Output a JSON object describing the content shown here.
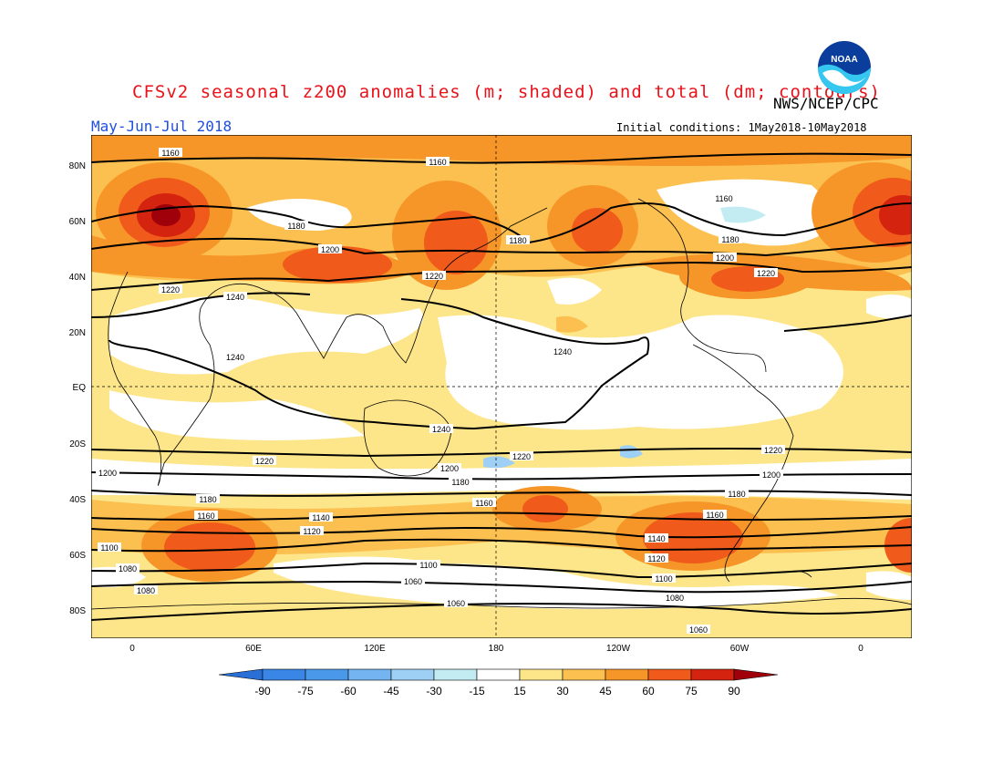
{
  "header": {
    "title": "CFSv2 seasonal z200 anomalies (m; shaded) and total (dm; contours)",
    "agency": "NWS/NCEP/CPC",
    "season": "May-Jun-Jul 2018",
    "initial_conditions": "Initial conditions: 1May2018-10May2018",
    "logo_text": "NOAA"
  },
  "map": {
    "lat_labels": [
      "80N",
      "60N",
      "40N",
      "20N",
      "EQ",
      "20S",
      "40S",
      "60S",
      "80S"
    ],
    "lon_labels": [
      "0",
      "60E",
      "120E",
      "180",
      "120W",
      "60W",
      "0"
    ],
    "contour_labels": [
      {
        "text": "1160"
      },
      {
        "text": "1160"
      },
      {
        "text": "1160"
      },
      {
        "text": "1180"
      },
      {
        "text": "1180"
      },
      {
        "text": "1180"
      },
      {
        "text": "1200"
      },
      {
        "text": "1200"
      },
      {
        "text": "1220"
      },
      {
        "text": "1220"
      },
      {
        "text": "1220"
      },
      {
        "text": "1240"
      },
      {
        "text": "1240"
      },
      {
        "text": "1240"
      },
      {
        "text": "1240"
      },
      {
        "text": "1220"
      },
      {
        "text": "1220"
      },
      {
        "text": "1220"
      },
      {
        "text": "1200"
      },
      {
        "text": "1200"
      },
      {
        "text": "1200"
      },
      {
        "text": "1180"
      },
      {
        "text": "1180"
      },
      {
        "text": "1180"
      },
      {
        "text": "1160"
      },
      {
        "text": "1160"
      },
      {
        "text": "1160"
      },
      {
        "text": "1140"
      },
      {
        "text": "1140"
      },
      {
        "text": "1120"
      },
      {
        "text": "1120"
      },
      {
        "text": "1100"
      },
      {
        "text": "1100"
      },
      {
        "text": "1100"
      },
      {
        "text": "1080"
      },
      {
        "text": "1080"
      },
      {
        "text": "1060"
      },
      {
        "text": "1060"
      },
      {
        "text": "1080"
      },
      {
        "text": "1060"
      }
    ]
  },
  "colorbar": {
    "labels": [
      "-90",
      "-75",
      "-60",
      "-45",
      "-30",
      "-15",
      "15",
      "30",
      "45",
      "60",
      "75",
      "90"
    ],
    "colors": [
      "#2a6fd6",
      "#3a86e6",
      "#4a98ea",
      "#74b4f0",
      "#9ed0f5",
      "#c2ecf2",
      "#ffffff",
      "#fde58a",
      "#fcc050",
      "#f79628",
      "#f05a1a",
      "#d42410",
      "#a0000a"
    ]
  }
}
